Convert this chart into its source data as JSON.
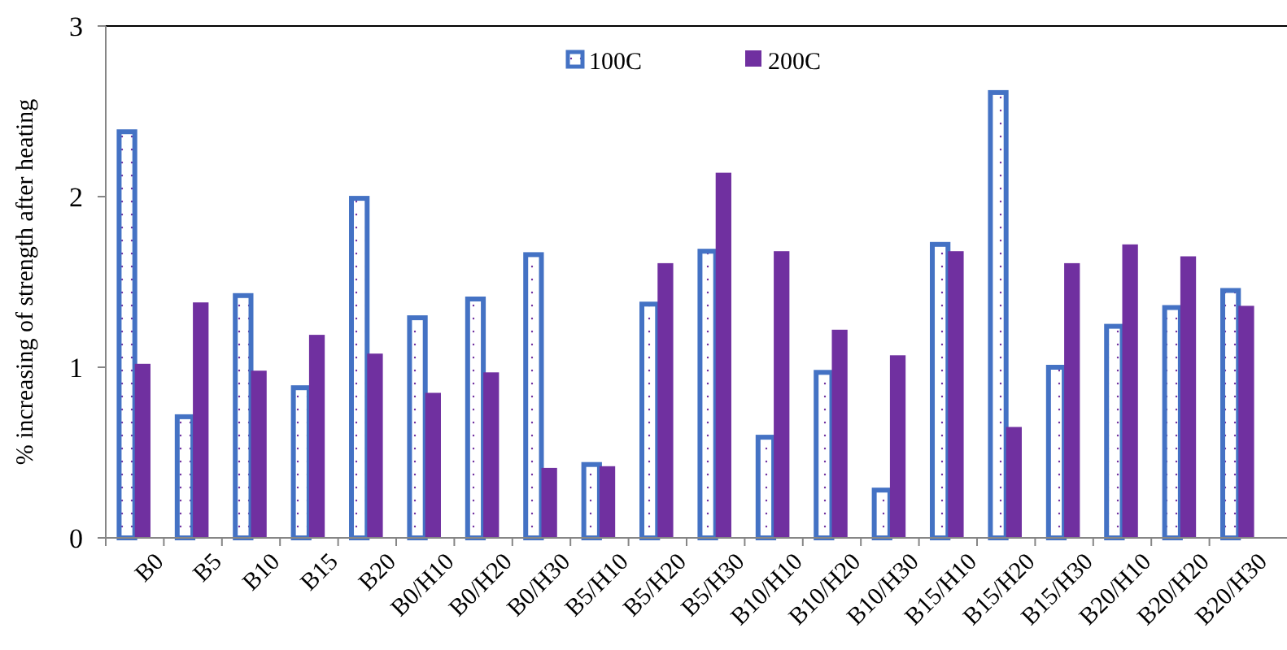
{
  "chart_data": {
    "type": "bar",
    "ylabel": "% increasing of strength after heating",
    "categories": [
      "B0",
      "B5",
      "B10",
      "B15",
      "B20",
      "B0/H10",
      "B0/H20",
      "B0/H30",
      "B5/H10",
      "B5/H20",
      "B5/H30",
      "B10/H10",
      "B10/H20",
      "B10/H30",
      "B15/H10",
      "B15/H20",
      "B15/H30",
      "B20/H10",
      "B20/H20",
      "B20/H30"
    ],
    "series": [
      {
        "name": "100C",
        "color": "#4472c4",
        "values": [
          2.38,
          0.71,
          1.42,
          0.88,
          1.99,
          1.29,
          1.4,
          1.66,
          0.43,
          1.37,
          1.68,
          0.59,
          0.97,
          0.28,
          1.72,
          2.61,
          1.0,
          1.24,
          1.35,
          1.45
        ]
      },
      {
        "name": "200C",
        "color": "#7030a0",
        "values": [
          1.02,
          1.38,
          0.98,
          1.19,
          1.08,
          0.85,
          0.97,
          0.41,
          0.42,
          1.61,
          2.14,
          1.68,
          1.22,
          1.07,
          1.68,
          0.65,
          1.61,
          1.72,
          1.65,
          1.36
        ]
      }
    ],
    "ylim": [
      0,
      3
    ],
    "yticks": [
      0,
      1,
      2,
      3
    ],
    "grid": false,
    "legend": "top"
  }
}
